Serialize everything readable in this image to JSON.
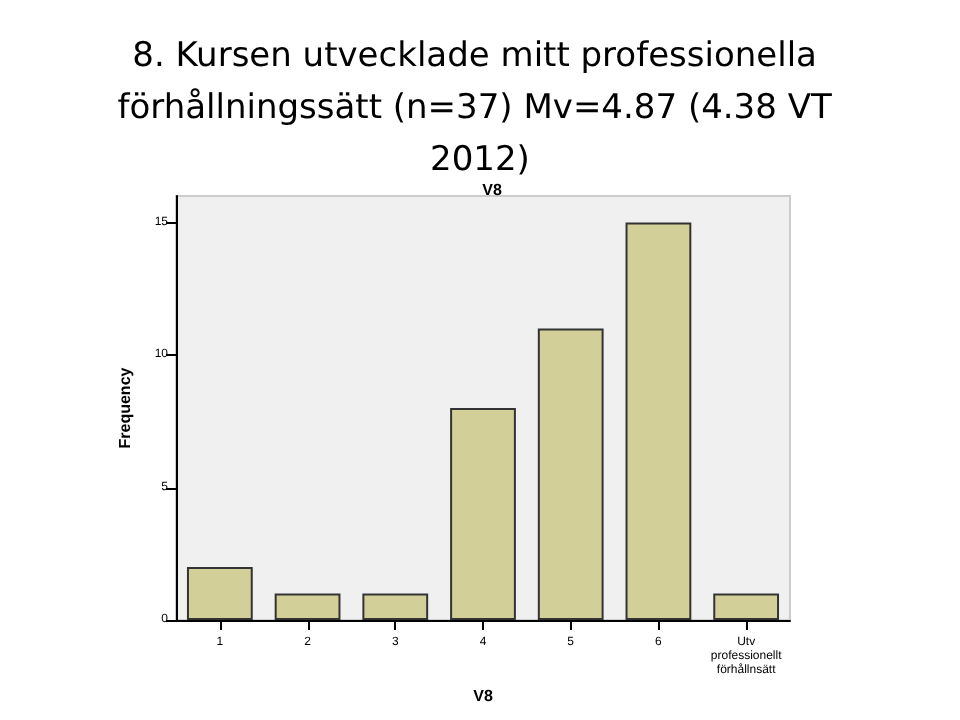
{
  "chart_data": {
    "type": "bar",
    "title": "8. Kursen utvecklade mitt professionella förhållningssätt (n=37) Mv=4.87 (4.38 VT 2012)",
    "subtitle": "V8",
    "xlabel": "V8",
    "ylabel": "Frequency",
    "categories": [
      "1",
      "2",
      "3",
      "4",
      "5",
      "6",
      "Utv professionellt förhållnsätt"
    ],
    "values": [
      2,
      1,
      1,
      8,
      11,
      15,
      1
    ],
    "color": "#d3cf99",
    "ylim": [
      0,
      16
    ],
    "yticks": [
      0,
      5,
      10,
      15
    ],
    "grid": false
  }
}
